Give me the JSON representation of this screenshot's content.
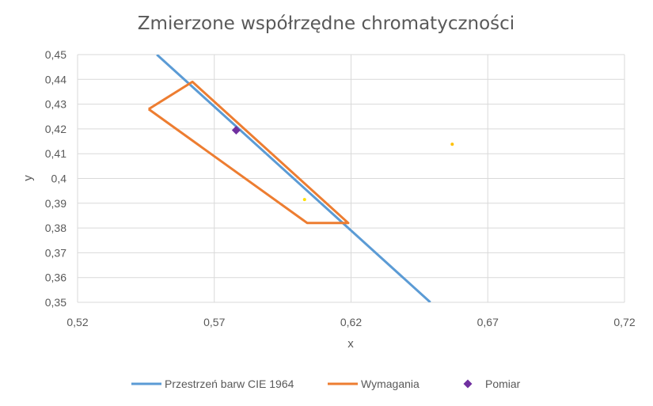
{
  "chart_data": {
    "type": "scatter",
    "title": "Zmierzone współrzędne chromatyczności",
    "xlabel": "x",
    "ylabel": "y",
    "xlim": [
      0.52,
      0.72
    ],
    "ylim": [
      0.35,
      0.45
    ],
    "x_ticks": [
      {
        "value": 0.52,
        "label": "0,52"
      },
      {
        "value": 0.57,
        "label": "0,57"
      },
      {
        "value": 0.62,
        "label": "0,62"
      },
      {
        "value": 0.67,
        "label": "0,67"
      },
      {
        "value": 0.72,
        "label": "0,72"
      }
    ],
    "y_ticks": [
      {
        "value": 0.35,
        "label": "0,35"
      },
      {
        "value": 0.36,
        "label": "0,36"
      },
      {
        "value": 0.37,
        "label": "0,37"
      },
      {
        "value": 0.38,
        "label": "0,38"
      },
      {
        "value": 0.39,
        "label": "0,39"
      },
      {
        "value": 0.4,
        "label": "0,4"
      },
      {
        "value": 0.41,
        "label": "0,41"
      },
      {
        "value": 0.42,
        "label": "0,42"
      },
      {
        "value": 0.43,
        "label": "0,43"
      },
      {
        "value": 0.44,
        "label": "0,44"
      },
      {
        "value": 0.45,
        "label": "0,45"
      }
    ],
    "grid": true,
    "legend_position": "bottom",
    "series": [
      {
        "name": "Przestrzeń barw CIE 1964",
        "type": "line",
        "color": "#5B9BD5",
        "points": [
          [
            0.549,
            0.45
          ],
          [
            0.649,
            0.35
          ]
        ]
      },
      {
        "name": "Wymagania",
        "type": "line",
        "color": "#ED7D31",
        "points": [
          [
            0.546,
            0.428
          ],
          [
            0.562,
            0.439
          ],
          [
            0.619,
            0.382
          ],
          [
            0.604,
            0.382
          ],
          [
            0.546,
            0.428
          ]
        ]
      },
      {
        "name": "Pomiar",
        "type": "scatter",
        "marker": "diamond",
        "color": "#7030A0",
        "points": [
          [
            0.578,
            0.4195
          ]
        ]
      }
    ],
    "extra_points": [
      {
        "x": 0.603,
        "y": 0.3915,
        "color": "#FFE100"
      },
      {
        "x": 0.657,
        "y": 0.4138,
        "color": "#FFC000"
      }
    ]
  }
}
